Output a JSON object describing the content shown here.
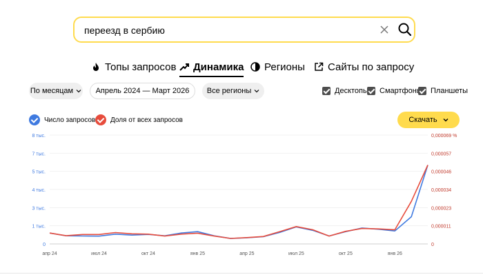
{
  "search": {
    "value": "переезд в сербию",
    "placeholder": ""
  },
  "tabs": [
    {
      "label": "Топы запросов",
      "icon": "flame-icon",
      "active": false
    },
    {
      "label": "Динамика",
      "icon": "trend-icon",
      "active": true
    },
    {
      "label": "Регионы",
      "icon": "globe-icon",
      "active": false
    },
    {
      "label": "Сайты по запросу",
      "icon": "external-link-icon",
      "active": false
    }
  ],
  "filters": {
    "period": "По месяцам",
    "range": "Апрель 2024 — Март 2026",
    "region": "Все регионы",
    "devices": [
      "Десктопы",
      "Смартфоны",
      "Планшеты"
    ]
  },
  "legend": {
    "count": "Число запросов",
    "share": "Доля от всех запросов"
  },
  "download_label": "Скачать",
  "colors": {
    "count": "#3f7ae0",
    "share": "#e74c3c",
    "accent": "#ffdb4d"
  },
  "chart_data": {
    "type": "line",
    "x": [
      "апр 24",
      "май 24",
      "июн 24",
      "июл 24",
      "авг 24",
      "сен 24",
      "окт 24",
      "ноя 24",
      "дек 24",
      "янв 25",
      "фев 25",
      "мар 25",
      "апр 25",
      "май 25",
      "июн 25",
      "июл 25",
      "авг 25",
      "сен 25",
      "окт 25",
      "ноя 25",
      "дек 25",
      "янв 26",
      "фев 26",
      "мар 26"
    ],
    "x_tick_labels": [
      "апр 24",
      "июл 24",
      "окт 24",
      "янв 25",
      "апр 25",
      "июл 25",
      "окт 25",
      "янв 26"
    ],
    "x_tick_indices": [
      0,
      3,
      6,
      9,
      12,
      15,
      18,
      21
    ],
    "left_axis": {
      "ticks": [
        "8 тыс.",
        "7 тыс.",
        "5 тыс.",
        "4 тыс.",
        "3 тыс.",
        "1 тыс.",
        "0"
      ],
      "ylim": [
        0,
        8000
      ]
    },
    "right_axis": {
      "ticks": [
        "0,000069 %",
        "0,000057",
        "0,000046",
        "0,000034",
        "0,000023",
        "0,000011",
        "0"
      ],
      "ylim": [
        0,
        6.9e-05
      ]
    },
    "series": [
      {
        "name": "Число запросов",
        "axis": "left",
        "values": [
          800,
          600,
          580,
          570,
          720,
          650,
          700,
          600,
          800,
          900,
          600,
          400,
          450,
          530,
          850,
          1250,
          1000,
          580,
          900,
          1170,
          1080,
          950,
          2000,
          5800
        ]
      },
      {
        "name": "Доля от всех запросов",
        "axis": "right",
        "values": [
          6.9e-06,
          5.2e-06,
          6e-06,
          6e-06,
          7.2e-06,
          6.4e-06,
          6.2e-06,
          5e-06,
          6.2e-06,
          6.8e-06,
          5e-06,
          3.5e-06,
          4e-06,
          4.7e-06,
          7.8e-06,
          1.1e-05,
          9e-06,
          5e-06,
          8e-06,
          9.8e-06,
          9.5e-06,
          9e-06,
          2.7e-05,
          5e-05
        ]
      }
    ]
  }
}
